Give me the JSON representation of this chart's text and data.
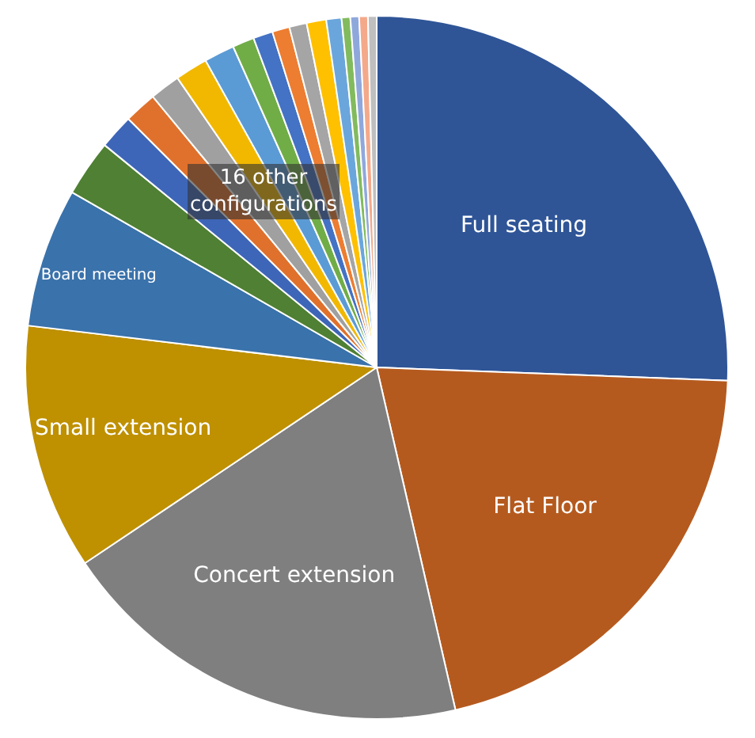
{
  "chart_data": {
    "type": "pie",
    "categories": [
      "Full seating",
      "Flat Floor",
      "Concert extension",
      "Small extension",
      "Board meeting",
      null,
      null,
      null,
      null,
      null,
      null,
      null,
      null,
      null,
      null,
      null,
      null,
      null,
      null,
      null,
      null
    ],
    "values": [
      25.6,
      20.8,
      19.2,
      11.3,
      6.4,
      2.6,
      1.6,
      1.5,
      1.4,
      1.5,
      1.4,
      1.0,
      0.9,
      0.8,
      0.8,
      0.9,
      0.7,
      0.4,
      0.4,
      0.4,
      0.4
    ],
    "colors": [
      "#2f5597",
      "#b55a1e",
      "#7f7f7f",
      "#bf9000",
      "#3a72ab",
      "#4f8033",
      "#3e66b8",
      "#e0712c",
      "#a0a0a0",
      "#f2b800",
      "#5b9bd5",
      "#70ad47",
      "#4472c4",
      "#ed7d31",
      "#a5a5a5",
      "#ffc000",
      "#6aa6dc",
      "#82bb5e",
      "#8fa8dc",
      "#f4a98a",
      "#bfbfbf"
    ],
    "annotations": [
      "16 other configurations"
    ],
    "legend": false
  }
}
